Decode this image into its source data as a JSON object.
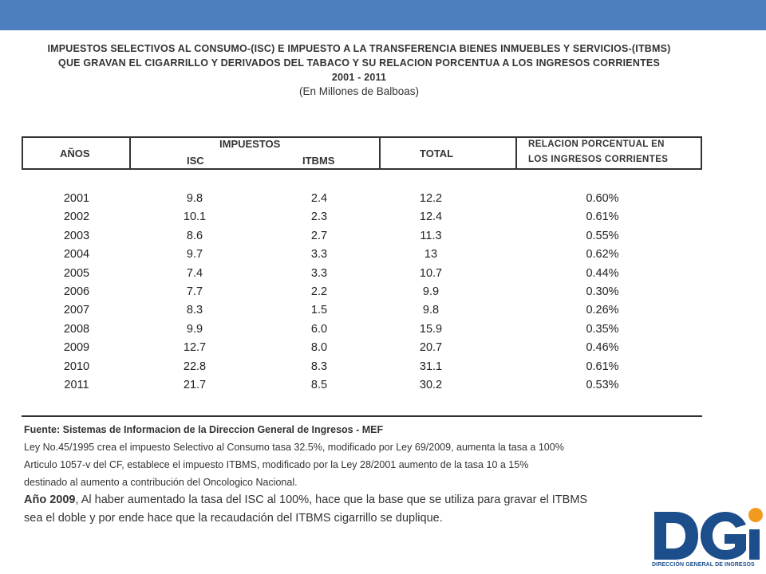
{
  "title": {
    "line1": "IMPUESTOS SELECTIVOS AL CONSUMO-(ISC) E IMPUESTO A LA TRANSFERENCIA BIENES INMUEBLES Y SERVICIOS-(ITBMS)",
    "line2": "QUE GRAVAN EL CIGARRILLO Y DERIVADOS DEL TABACO Y SU RELACION PORCENTUA A LOS INGRESOS CORRIENTES",
    "years": "2001 - 2011",
    "units": "(En Millones de Balboas)"
  },
  "table": {
    "headers": {
      "years": "AÑOS",
      "impuestos": "IMPUESTOS",
      "isc": "ISC",
      "itbms": "ITBMS",
      "total": "TOTAL",
      "relacion_line1": "RELACION PORCENTUAL EN",
      "relacion_line2": "LOS INGRESOS CORRIENTES"
    },
    "rows": [
      {
        "year": "2001",
        "isc": "9.8",
        "itbms": "2.4",
        "total": "12.2",
        "rel": "0.60%"
      },
      {
        "year": "2002",
        "isc": "10.1",
        "itbms": "2.3",
        "total": "12.4",
        "rel": "0.61%"
      },
      {
        "year": "2003",
        "isc": "8.6",
        "itbms": "2.7",
        "total": "11.3",
        "rel": "0.55%"
      },
      {
        "year": "2004",
        "isc": "9.7",
        "itbms": "3.3",
        "total": "13",
        "rel": "0.62%"
      },
      {
        "year": "2005",
        "isc": "7.4",
        "itbms": "3.3",
        "total": "10.7",
        "rel": "0.44%"
      },
      {
        "year": "2006",
        "isc": "7.7",
        "itbms": "2.2",
        "total": "9.9",
        "rel": "0.30%"
      },
      {
        "year": "2007",
        "isc": "8.3",
        "itbms": "1.5",
        "total": "9.8",
        "rel": "0.26%"
      },
      {
        "year": "2008",
        "isc": "9.9",
        "itbms": "6.0",
        "total": "15.9",
        "rel": "0.35%"
      },
      {
        "year": "2009",
        "isc": "12.7",
        "itbms": "8.0",
        "total": "20.7",
        "rel": "0.46%"
      },
      {
        "year": "2010",
        "isc": "22.8",
        "itbms": "8.3",
        "total": "31.1",
        "rel": "0.61%"
      },
      {
        "year": "2011",
        "isc": "21.7",
        "itbms": "8.5",
        "total": "30.2",
        "rel": "0.53%"
      }
    ]
  },
  "notes": {
    "source": "Fuente:  Sistemas de Informacion de la Direccion General de Ingresos - MEF",
    "line1": "Ley No.45/1995 crea el impuesto Selectivo al Consumo tasa 32.5%, modificado por Ley 69/2009, aumenta la tasa a 100%",
    "line2": "Articulo 1057-v del CF, establece el impuesto ITBMS, modificado por la Ley 28/2001 aumento de la tasa 10 a 15%",
    "line3": "destinado al aumento a contribución del Oncologico Nacional.",
    "year_bold": "Año 2009",
    "line4_rest": ", Al haber aumentado la tasa del ISC al 100%, hace que la base que se utiliza para gravar el ITBMS",
    "line5": "sea el doble y por ende hace que la recaudación del ITBMS cigarrillo se duplique."
  },
  "logo": {
    "letters": "DGi",
    "caption": "DIRECCIÓN GENERAL DE INGRESOS",
    "colors": {
      "blue": "#1c4e8c",
      "orange": "#f29a1f"
    }
  },
  "colors": {
    "top_bar": "#4d7fbf"
  }
}
